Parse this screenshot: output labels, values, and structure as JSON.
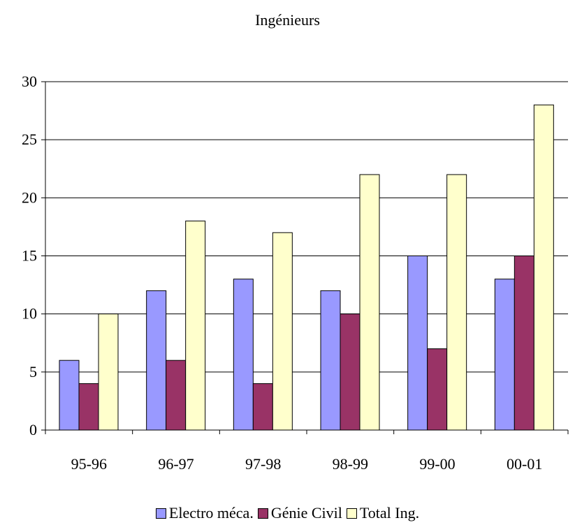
{
  "chart_data": {
    "type": "bar",
    "title": "Ingénieurs",
    "categories": [
      "95-96",
      "96-97",
      "97-98",
      "98-99",
      "99-00",
      "00-01"
    ],
    "series": [
      {
        "name": "Electro méca.",
        "color": "#9999ff",
        "values": [
          6,
          12,
          13,
          12,
          15,
          13
        ]
      },
      {
        "name": "Génie Civil",
        "color": "#993366",
        "values": [
          4,
          6,
          4,
          10,
          7,
          15
        ]
      },
      {
        "name": "Total Ing.",
        "color": "#ffffcc",
        "values": [
          10,
          18,
          17,
          22,
          22,
          28
        ]
      }
    ],
    "ylim": [
      0,
      30
    ],
    "yticks": [
      "0",
      "5",
      "10",
      "15",
      "20",
      "25",
      "30"
    ],
    "grid": true,
    "legend_position": "bottom"
  }
}
